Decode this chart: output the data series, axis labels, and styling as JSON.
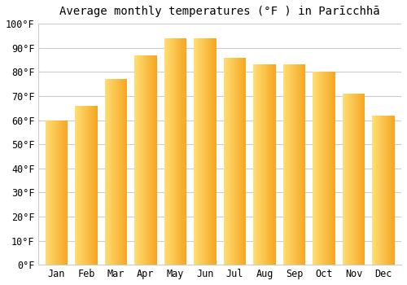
{
  "months": [
    "Jan",
    "Feb",
    "Mar",
    "Apr",
    "May",
    "Jun",
    "Jul",
    "Aug",
    "Sep",
    "Oct",
    "Nov",
    "Dec"
  ],
  "temperatures": [
    60,
    66,
    77,
    87,
    94,
    94,
    86,
    83,
    83,
    80,
    71,
    62
  ],
  "bar_color_left": "#FFD966",
  "bar_color_right": "#F5A623",
  "title": "Average monthly temperatures (°F ) in Parīcchhā",
  "ylim": [
    0,
    100
  ],
  "yticks": [
    0,
    10,
    20,
    30,
    40,
    50,
    60,
    70,
    80,
    90,
    100
  ],
  "ytick_labels": [
    "0°F",
    "10°F",
    "20°F",
    "30°F",
    "40°F",
    "50°F",
    "60°F",
    "70°F",
    "80°F",
    "90°F",
    "100°F"
  ],
  "background_color": "#ffffff",
  "grid_color": "#cccccc",
  "title_fontsize": 10,
  "tick_fontsize": 8.5
}
